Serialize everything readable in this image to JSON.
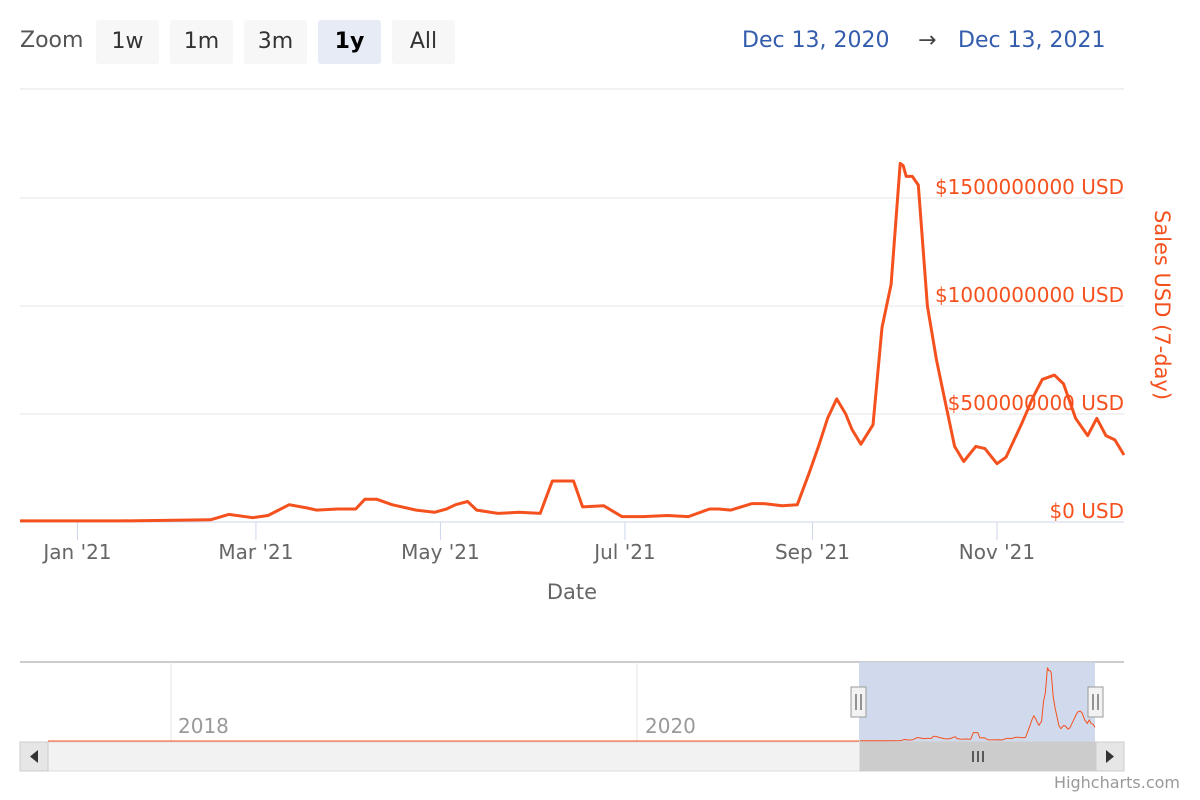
{
  "range_selector": {
    "zoom_label": "Zoom",
    "buttons": [
      {
        "label": "1w",
        "active": false
      },
      {
        "label": "1m",
        "active": false
      },
      {
        "label": "3m",
        "active": false
      },
      {
        "label": "1y",
        "active": true
      },
      {
        "label": "All",
        "active": false
      }
    ],
    "from": "Dec 13, 2020",
    "arrow": "→",
    "to": "Dec 13, 2021"
  },
  "colors": {
    "series": "#f4511e",
    "navigator_mask": "#ccd6eb",
    "grid": "#e6e6e6",
    "axis_text": "#666666"
  },
  "credits": "Highcharts.com",
  "chart_data": {
    "type": "line",
    "title": "",
    "xlabel": "Date",
    "ylabel": "Sales USD (7-day)",
    "x_range": [
      "2020-12-13",
      "2021-12-13"
    ],
    "ylim": [
      0,
      2000000000
    ],
    "y_ticks": [
      {
        "value": 0,
        "label": "$0 USD"
      },
      {
        "value": 500000000,
        "label": "$500000000 USD"
      },
      {
        "value": 1000000000,
        "label": "$1000000000 USD"
      },
      {
        "value": 1500000000,
        "label": "$1500000000 USD"
      }
    ],
    "x_ticks": [
      {
        "date": "2021-01-01",
        "label": "Jan '21"
      },
      {
        "date": "2021-03-01",
        "label": "Mar '21"
      },
      {
        "date": "2021-05-01",
        "label": "May '21"
      },
      {
        "date": "2021-07-01",
        "label": "Jul '21"
      },
      {
        "date": "2021-09-01",
        "label": "Sep '21"
      },
      {
        "date": "2021-11-01",
        "label": "Nov '21"
      }
    ],
    "grid": true,
    "series": [
      {
        "points": [
          [
            "2020-12-13",
            5000000
          ],
          [
            "2021-01-15",
            5000000
          ],
          [
            "2021-02-14",
            10000000
          ],
          [
            "2021-02-20",
            35000000
          ],
          [
            "2021-02-28",
            20000000
          ],
          [
            "2021-03-05",
            30000000
          ],
          [
            "2021-03-12",
            80000000
          ],
          [
            "2021-03-18",
            65000000
          ],
          [
            "2021-03-21",
            55000000
          ],
          [
            "2021-03-28",
            60000000
          ],
          [
            "2021-04-03",
            60000000
          ],
          [
            "2021-04-06",
            105000000
          ],
          [
            "2021-04-10",
            105000000
          ],
          [
            "2021-04-15",
            80000000
          ],
          [
            "2021-04-23",
            55000000
          ],
          [
            "2021-04-29",
            45000000
          ],
          [
            "2021-05-03",
            60000000
          ],
          [
            "2021-05-06",
            80000000
          ],
          [
            "2021-05-10",
            95000000
          ],
          [
            "2021-05-13",
            55000000
          ],
          [
            "2021-05-20",
            40000000
          ],
          [
            "2021-05-27",
            45000000
          ],
          [
            "2021-06-03",
            40000000
          ],
          [
            "2021-06-07",
            190000000
          ],
          [
            "2021-06-14",
            190000000
          ],
          [
            "2021-06-17",
            70000000
          ],
          [
            "2021-06-24",
            75000000
          ],
          [
            "2021-06-30",
            25000000
          ],
          [
            "2021-07-07",
            25000000
          ],
          [
            "2021-07-15",
            30000000
          ],
          [
            "2021-07-22",
            25000000
          ],
          [
            "2021-07-29",
            60000000
          ],
          [
            "2021-08-01",
            60000000
          ],
          [
            "2021-08-05",
            55000000
          ],
          [
            "2021-08-12",
            85000000
          ],
          [
            "2021-08-16",
            85000000
          ],
          [
            "2021-08-22",
            75000000
          ],
          [
            "2021-08-27",
            80000000
          ],
          [
            "2021-08-31",
            230000000
          ],
          [
            "2021-09-03",
            350000000
          ],
          [
            "2021-09-06",
            480000000
          ],
          [
            "2021-09-09",
            570000000
          ],
          [
            "2021-09-12",
            500000000
          ],
          [
            "2021-09-14",
            430000000
          ],
          [
            "2021-09-17",
            360000000
          ],
          [
            "2021-09-21",
            450000000
          ],
          [
            "2021-09-24",
            900000000
          ],
          [
            "2021-09-27",
            1100000000
          ],
          [
            "2021-09-30",
            1660000000
          ],
          [
            "2021-10-01",
            1650000000
          ],
          [
            "2021-10-02",
            1600000000
          ],
          [
            "2021-10-04",
            1600000000
          ],
          [
            "2021-10-06",
            1560000000
          ],
          [
            "2021-10-09",
            1000000000
          ],
          [
            "2021-10-12",
            750000000
          ],
          [
            "2021-10-15",
            550000000
          ],
          [
            "2021-10-18",
            350000000
          ],
          [
            "2021-10-21",
            280000000
          ],
          [
            "2021-10-25",
            350000000
          ],
          [
            "2021-10-28",
            340000000
          ],
          [
            "2021-11-01",
            270000000
          ],
          [
            "2021-11-04",
            300000000
          ],
          [
            "2021-11-09",
            450000000
          ],
          [
            "2021-11-13",
            580000000
          ],
          [
            "2021-11-16",
            660000000
          ],
          [
            "2021-11-20",
            680000000
          ],
          [
            "2021-11-23",
            640000000
          ],
          [
            "2021-11-27",
            480000000
          ],
          [
            "2021-12-01",
            400000000
          ],
          [
            "2021-12-04",
            480000000
          ],
          [
            "2021-12-07",
            400000000
          ],
          [
            "2021-12-10",
            380000000
          ],
          [
            "2021-12-13",
            310000000
          ]
        ]
      }
    ]
  },
  "navigator": {
    "year_labels": [
      "2018",
      "2020"
    ]
  }
}
